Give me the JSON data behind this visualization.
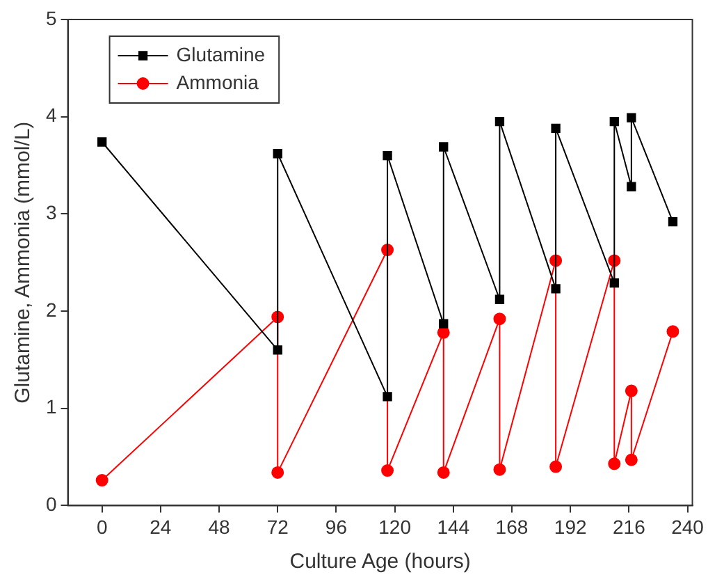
{
  "chart_data": {
    "type": "line",
    "xlabel": "Culture Age (hours)",
    "ylabel": "Glutamine, Ammonia (mmol/L)",
    "xlim": [
      -14,
      242
    ],
    "xticks": [
      0,
      24,
      48,
      72,
      96,
      120,
      144,
      168,
      192,
      216,
      240
    ],
    "ylim": [
      0,
      5
    ],
    "yticks": [
      0,
      1,
      2,
      3,
      4,
      5
    ],
    "grid": false,
    "legend": "top left",
    "series": [
      {
        "name": "Glutamine",
        "color": "#000000",
        "marker": "square",
        "x": [
          0,
          72,
          72,
          117,
          117,
          140,
          140,
          163,
          163,
          186,
          186,
          210,
          210,
          217,
          217,
          234
        ],
        "values": [
          3.74,
          1.6,
          3.62,
          1.12,
          3.6,
          1.87,
          3.69,
          2.12,
          3.95,
          2.23,
          3.88,
          2.29,
          3.95,
          3.28,
          3.99,
          2.92
        ]
      },
      {
        "name": "Ammonia",
        "color": "#ff0000",
        "marker": "circle",
        "x": [
          0,
          72,
          72,
          117,
          117,
          140,
          140,
          163,
          163,
          186,
          186,
          210,
          210,
          217,
          217,
          234
        ],
        "values": [
          0.26,
          1.94,
          0.34,
          2.63,
          0.36,
          1.78,
          0.34,
          1.92,
          0.37,
          2.52,
          0.4,
          2.52,
          0.43,
          1.18,
          0.47,
          1.79
        ]
      }
    ]
  }
}
